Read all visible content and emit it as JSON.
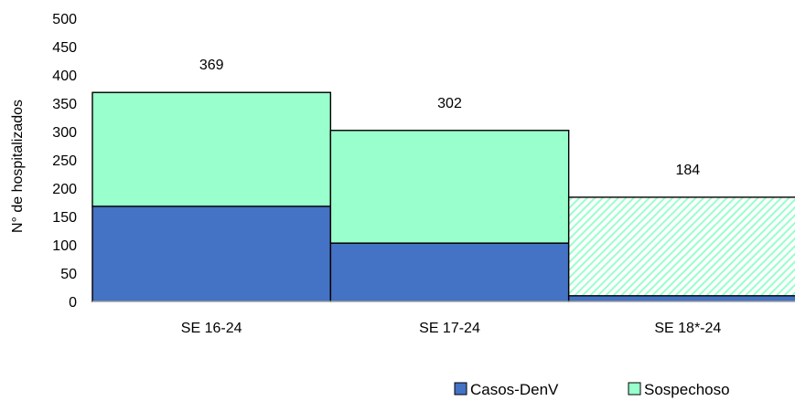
{
  "chart_data": {
    "type": "bar",
    "stacked": true,
    "categories": [
      "SE 16-24",
      "SE 17-24",
      "SE 18*-24"
    ],
    "series": [
      {
        "name": "Casos-DenV",
        "values": [
          168,
          103,
          10
        ],
        "color": "#4472C4"
      },
      {
        "name": "Sospechoso",
        "values": [
          201,
          199,
          174
        ],
        "color": "#99FFCC"
      }
    ],
    "totals": [
      "369",
      "302",
      "184"
    ],
    "hatched_category": "SE 18*-24",
    "ylabel": "N° de hospitalizados",
    "yticks": [
      "0",
      "50",
      "100",
      "150",
      "200",
      "250",
      "300",
      "350",
      "400",
      "450",
      "500"
    ],
    "ylim": [
      0,
      500
    ],
    "grid": false,
    "legend_position": "bottom-right"
  }
}
